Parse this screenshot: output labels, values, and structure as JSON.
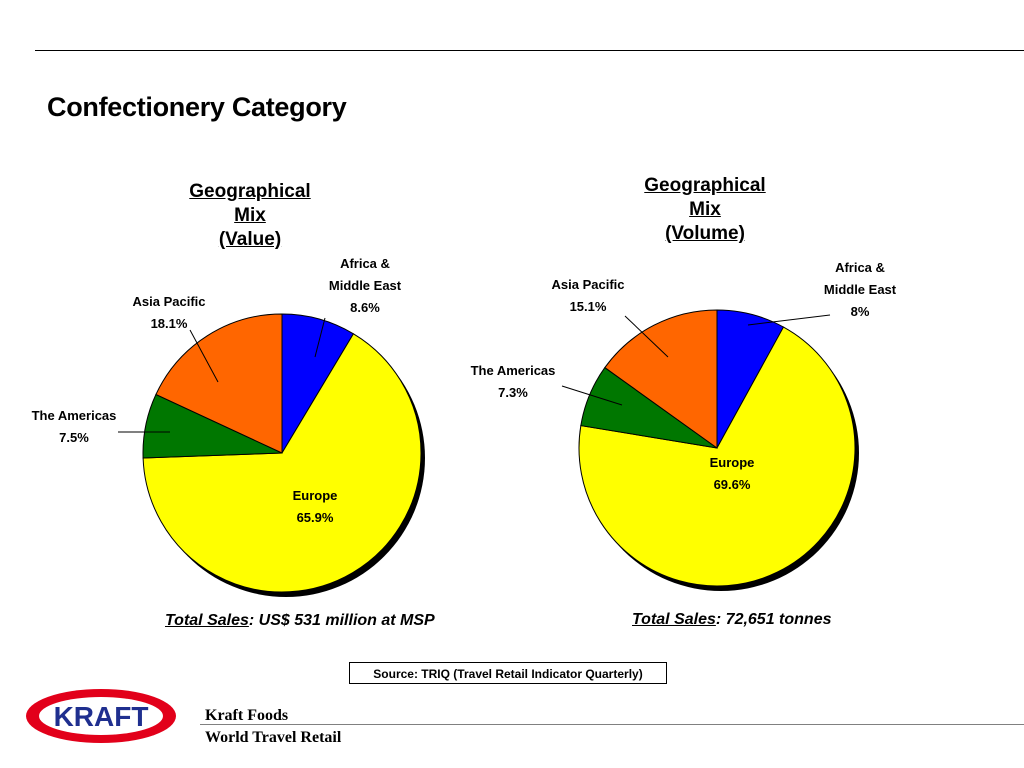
{
  "page": {
    "title": "Confectionery Category",
    "source": "Source: TRIQ (Travel Retail Indicator Quarterly)",
    "footer": {
      "company": "Kraft Foods",
      "division": "World Travel Retail"
    },
    "logo_text": "KRAFT"
  },
  "colors": {
    "europe": "#FFFF00",
    "africa_me": "#0000FF",
    "asia_pacific": "#FF6600",
    "americas": "#007700",
    "logo_red": "#E2001A",
    "logo_blue": "#1F2F8F"
  },
  "chart_data": [
    {
      "type": "pie",
      "title_lines": [
        "Geographical",
        "Mix",
        "(Value)"
      ],
      "slices": [
        {
          "label_lines": [
            "Africa &",
            "Middle East"
          ],
          "value_label": "8.6%",
          "value": 8.6,
          "color": "#0000FF"
        },
        {
          "label_lines": [
            "Europe"
          ],
          "value_label": "65.9%",
          "value": 65.9,
          "color": "#FFFF00"
        },
        {
          "label_lines": [
            "The Americas"
          ],
          "value_label": "7.5%",
          "value": 7.5,
          "color": "#007700"
        },
        {
          "label_lines": [
            "Asia Pacific"
          ],
          "value_label": "18.1%",
          "value": 18.1,
          "color": "#FF6600"
        }
      ],
      "total_label": "Total Sales",
      "total_text": ": US$ 531 million at MSP"
    },
    {
      "type": "pie",
      "title_lines": [
        "Geographical",
        "Mix",
        "(Volume)"
      ],
      "slices": [
        {
          "label_lines": [
            "Africa &",
            "Middle East"
          ],
          "value_label": "8%",
          "value": 8.0,
          "color": "#0000FF"
        },
        {
          "label_lines": [
            "Europe"
          ],
          "value_label": "69.6%",
          "value": 69.6,
          "color": "#FFFF00"
        },
        {
          "label_lines": [
            "The Americas"
          ],
          "value_label": "7.3%",
          "value": 7.3,
          "color": "#007700"
        },
        {
          "label_lines": [
            "Asia Pacific"
          ],
          "value_label": "15.1%",
          "value": 15.1,
          "color": "#FF6600"
        }
      ],
      "total_label": "Total Sales",
      "total_text": ": 72,651 tonnes"
    }
  ]
}
